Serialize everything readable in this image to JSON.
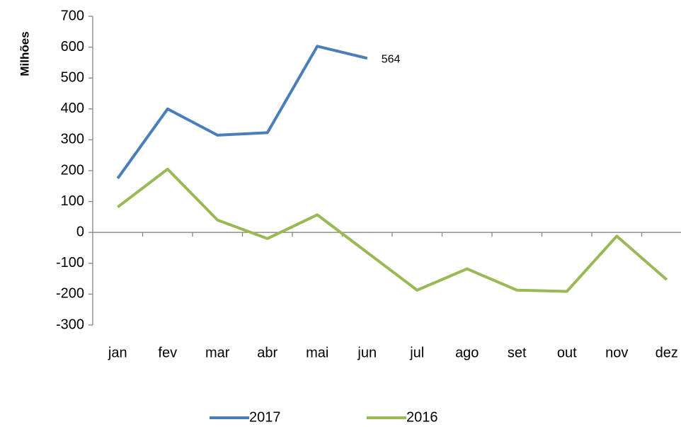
{
  "chart_data": {
    "type": "line",
    "y_axis_label": "Milhões",
    "categories": [
      "jan",
      "fev",
      "mar",
      "abr",
      "mai",
      "jun",
      "jul",
      "ago",
      "set",
      "out",
      "nov",
      "dez"
    ],
    "series": [
      {
        "name": "2017",
        "color": "#4a7ebb",
        "values": [
          175,
          400,
          315,
          323,
          603,
          564,
          null,
          null,
          null,
          null,
          null,
          null
        ]
      },
      {
        "name": "2016",
        "color": "#98b954",
        "values": [
          82,
          205,
          40,
          -20,
          57,
          -65,
          -187,
          -118,
          -187,
          -191,
          -12,
          -153
        ]
      }
    ],
    "ylim": [
      -300,
      700
    ],
    "yticks": [
      -300,
      -200,
      -100,
      0,
      100,
      200,
      300,
      400,
      500,
      600,
      700
    ],
    "grid": false,
    "legend": "bottom"
  }
}
